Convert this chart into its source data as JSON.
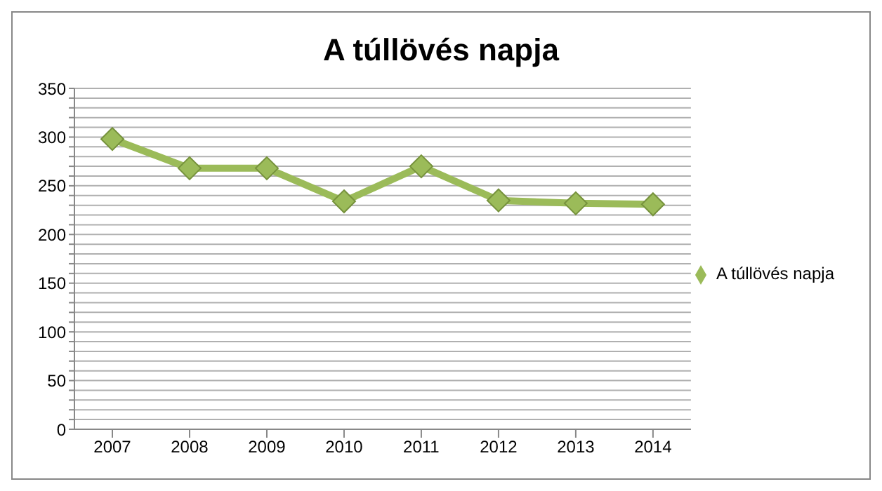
{
  "chart_data": {
    "type": "line",
    "title": "A túllövés napja",
    "categories": [
      "2007",
      "2008",
      "2009",
      "2010",
      "2011",
      "2012",
      "2013",
      "2014"
    ],
    "series": [
      {
        "name": "A túllövés napja",
        "color": "#9bbb59",
        "values": [
          298,
          268,
          268,
          234,
          270,
          235,
          232,
          231
        ]
      }
    ],
    "ylim": [
      0,
      350
    ],
    "yticks": [
      0,
      {
        "value": 10,
        "label": null
      },
      {
        "value": 20,
        "label": null
      },
      {
        "value": 30,
        "label": null
      },
      {
        "value": 40,
        "label": null
      },
      50,
      {
        "value": 60,
        "label": null
      },
      {
        "value": 70,
        "label": null
      },
      {
        "value": 80,
        "label": null
      },
      {
        "value": 90,
        "label": null
      },
      100,
      {
        "value": 110,
        "label": null
      },
      {
        "value": 120,
        "label": null
      },
      {
        "value": 130,
        "label": null
      },
      {
        "value": 140,
        "label": null
      },
      150,
      {
        "value": 160,
        "label": null
      },
      {
        "value": 170,
        "label": null
      },
      {
        "value": 180,
        "label": null
      },
      {
        "value": 190,
        "label": null
      },
      200,
      {
        "value": 210,
        "label": null
      },
      {
        "value": 220,
        "label": null
      },
      {
        "value": 230,
        "label": null
      },
      {
        "value": 240,
        "label": null
      },
      250,
      {
        "value": 260,
        "label": null
      },
      {
        "value": 270,
        "label": null
      },
      {
        "value": 280,
        "label": null
      },
      {
        "value": 290,
        "label": null
      },
      300,
      {
        "value": 310,
        "label": null
      },
      {
        "value": 320,
        "label": null
      },
      {
        "value": 330,
        "label": null
      },
      {
        "value": 340,
        "label": null
      },
      350
    ],
    "grid": true,
    "legend": "right",
    "marker": "diamond",
    "line_style": "solid"
  }
}
